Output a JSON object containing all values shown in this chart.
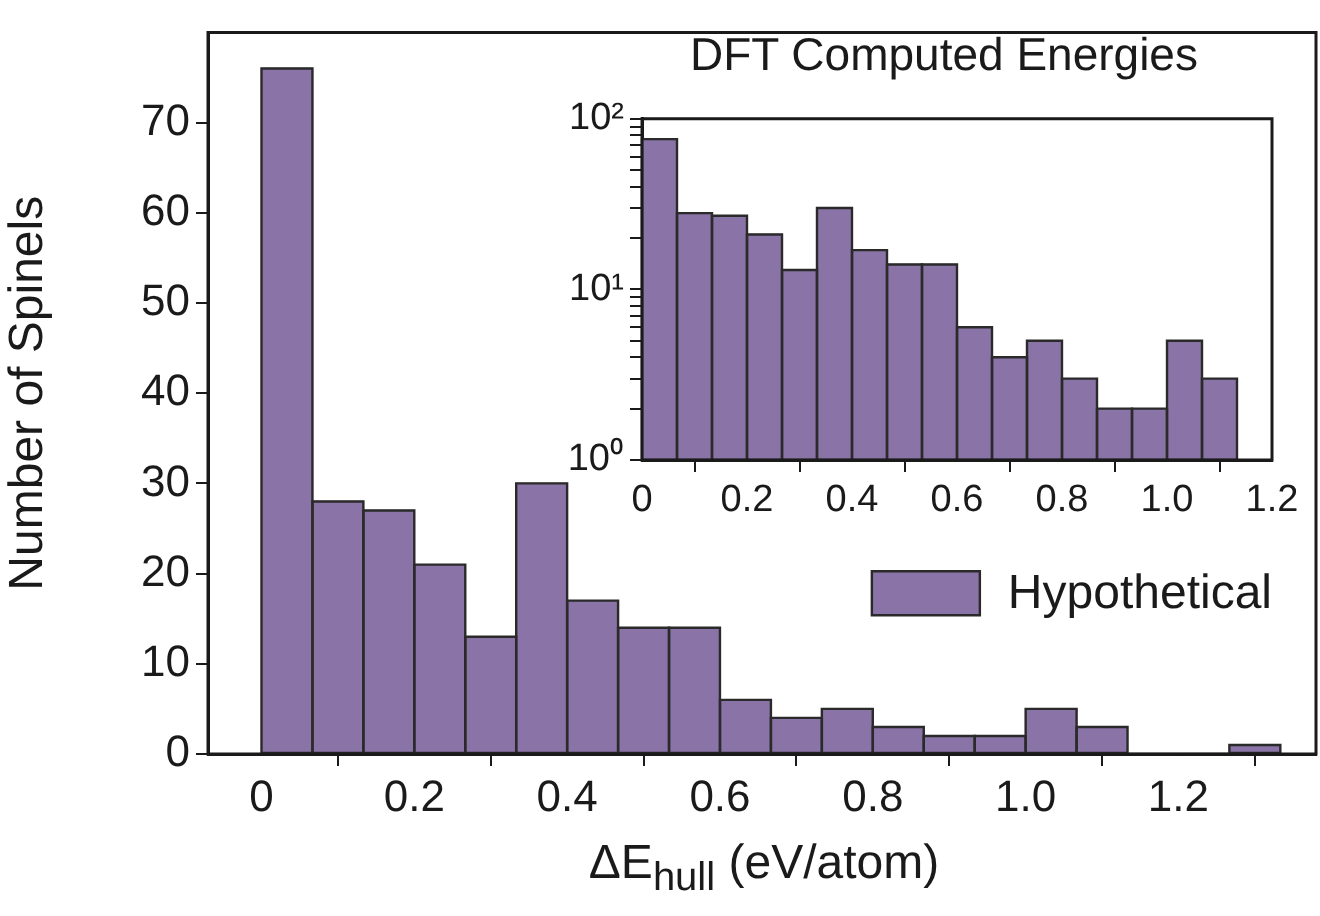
{
  "chart_data": [
    {
      "type": "histogram",
      "title": "DFT Computed Energies",
      "xlabel": "ΔE$_{hull}$ (eV/atom)",
      "ylabel": "Number of Spinels",
      "bins": [
        0,
        0.0667,
        0.1333,
        0.2,
        0.2667,
        0.3333,
        0.4,
        0.4667,
        0.5333,
        0.6,
        0.6667,
        0.7333,
        0.8,
        0.8667,
        0.9333,
        1,
        1.0667,
        1.1333,
        1.2,
        1.2667,
        1.3333
      ],
      "series": [
        {
          "name": "Hypothetical",
          "color": "#8a73a6",
          "values": [
            76,
            28,
            27,
            21,
            13,
            30,
            17,
            14,
            14,
            6,
            4,
            5,
            3,
            2,
            2,
            5,
            3,
            0,
            0,
            1
          ]
        }
      ],
      "xlim": [
        -0.07,
        1.38
      ],
      "xticks": [
        0,
        0.2,
        0.4,
        0.6,
        0.8,
        {
          "value": 1,
          "label": "1.0"
        },
        1.2
      ],
      "ylim": [
        0,
        80
      ],
      "yticks": [
        0,
        10,
        20,
        30,
        40,
        50,
        60,
        70
      ],
      "legend": "right",
      "grid": false
    },
    {
      "type": "histogram",
      "bins": [
        0,
        0.0667,
        0.1333,
        0.2,
        0.2667,
        0.3333,
        0.4,
        0.4667,
        0.5333,
        0.6,
        0.6667,
        0.7333,
        0.8,
        0.8667,
        0.9333,
        1,
        1.0667,
        1.1333
      ],
      "series": [
        {
          "color": "#8a73a6",
          "values": [
            76,
            28,
            27,
            21,
            13,
            30,
            17,
            14,
            14,
            6,
            4,
            5,
            3,
            2,
            2,
            5,
            3
          ]
        }
      ],
      "log": "y",
      "xlim": [
        0,
        1.2
      ],
      "xticks": [
        0,
        0.2,
        0.4,
        0.6,
        0.8,
        {
          "value": 1,
          "label": "1.0"
        },
        1.2
      ],
      "ylim": [
        1,
        100
      ],
      "yticks": [
        {
          "value": 1,
          "label": "10⁰"
        },
        {
          "value": 2,
          "label": null
        },
        {
          "value": 3,
          "label": null
        },
        {
          "value": 4,
          "label": null
        },
        {
          "value": 5,
          "label": null
        },
        {
          "value": 6,
          "label": null
        },
        {
          "value": 7,
          "label": null
        },
        {
          "value": 8,
          "label": null
        },
        {
          "value": 9,
          "label": null
        },
        {
          "value": 10,
          "label": "10¹"
        },
        {
          "value": 20,
          "label": null
        },
        {
          "value": 30,
          "label": null
        },
        {
          "value": 40,
          "label": null
        },
        {
          "value": 50,
          "label": null
        },
        {
          "value": 60,
          "label": null
        },
        {
          "value": 70,
          "label": null
        },
        {
          "value": 80,
          "label": null
        },
        {
          "value": 90,
          "label": null
        },
        {
          "value": 100,
          "label": "10²"
        }
      ],
      "grid": false
    }
  ]
}
